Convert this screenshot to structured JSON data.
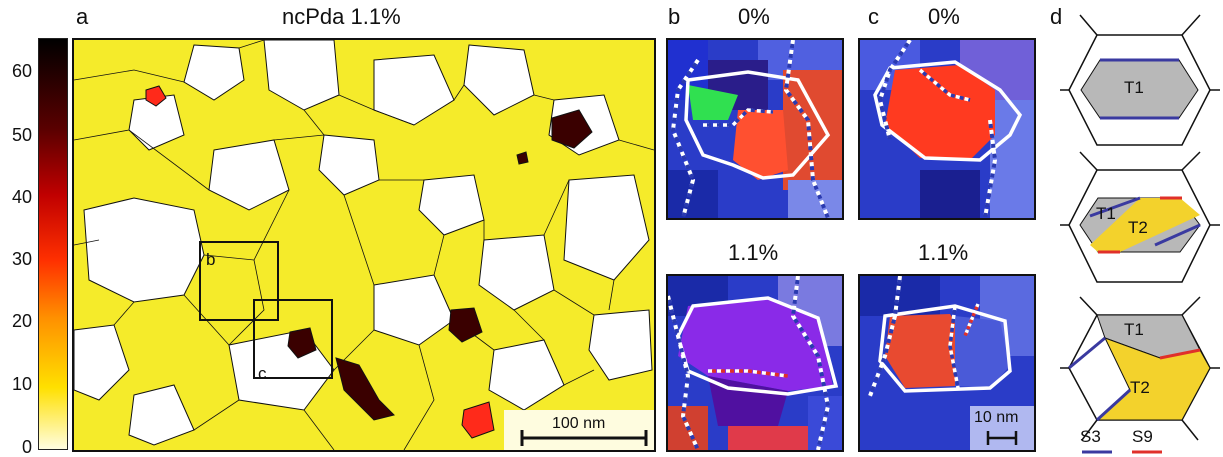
{
  "panel_a": {
    "label": "a",
    "title": "ncPda 1.1%",
    "colorbar_ticks": [
      "0",
      "10",
      "20",
      "30",
      "40",
      "50",
      "60"
    ],
    "colorbar_range": [
      0,
      65
    ],
    "colorbar_colors": [
      "#fffde0",
      "#ffe000",
      "#ff9000",
      "#ff3000",
      "#c00000",
      "#5a0000",
      "#000000"
    ],
    "inset_b_label": "b",
    "inset_c_label": "c",
    "scale_bar": "100 nm"
  },
  "panel_b": {
    "label": "b",
    "top_title": "0%",
    "bottom_title": "1.1%"
  },
  "panel_c": {
    "label": "c",
    "top_title": "0%",
    "bottom_title": "1.1%",
    "scale_bar": "10 nm"
  },
  "panel_d": {
    "label": "d",
    "twin_labels": [
      "T1",
      "T1",
      "T2",
      "T1",
      "T2"
    ],
    "legend": [
      {
        "label": "S3",
        "color": "#3a3aa0"
      },
      {
        "label": "S9",
        "color": "#e0302a"
      }
    ],
    "fill_gray": "#b8b8b8",
    "fill_yellow": "#f3d22c"
  }
}
